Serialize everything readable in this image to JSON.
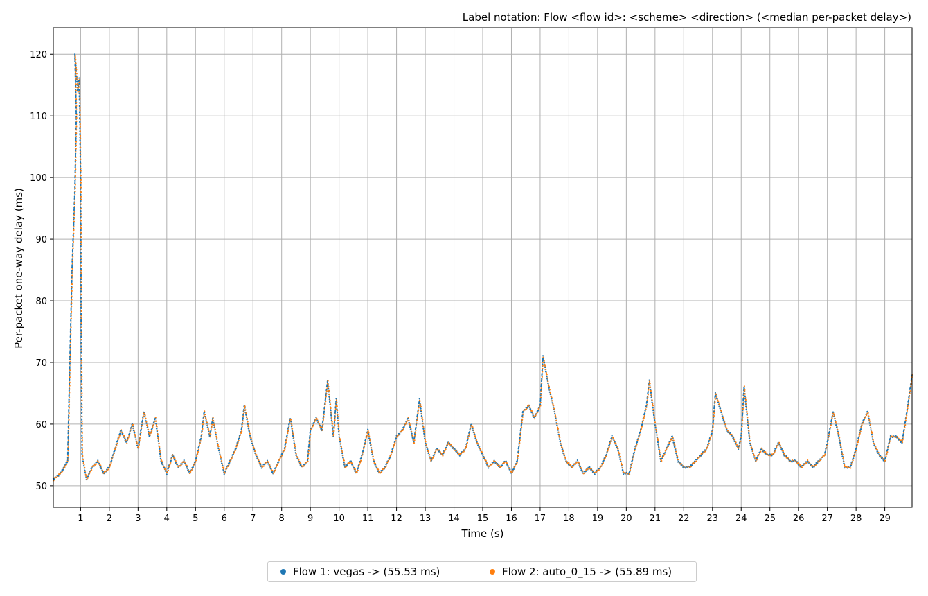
{
  "chart_data": {
    "type": "scatter",
    "title": "Label notation: Flow <flow id>: <scheme> <direction> (<median per-packet delay>)",
    "xlabel": "Time (s)",
    "ylabel": "Per-packet one-way delay (ms)",
    "xlim": [
      0.05,
      29.95
    ],
    "ylim": [
      46.5,
      124.3
    ],
    "xticks": [
      "1",
      "2",
      "3",
      "4",
      "5",
      "6",
      "7",
      "8",
      "9",
      "10",
      "11",
      "12",
      "13",
      "14",
      "15",
      "16",
      "17",
      "18",
      "19",
      "20",
      "21",
      "22",
      "23",
      "24",
      "25",
      "26",
      "27",
      "28",
      "29"
    ],
    "yticks": [
      "50",
      "60",
      "70",
      "80",
      "90",
      "100",
      "110",
      "120"
    ],
    "grid": true,
    "legend_position": "bottom-center",
    "shared_series_points": [
      [
        0.05,
        51
      ],
      [
        0.3,
        52
      ],
      [
        0.55,
        54
      ],
      [
        0.6,
        65
      ],
      [
        0.7,
        85
      ],
      [
        0.8,
        98
      ],
      [
        0.85,
        110
      ],
      [
        0.8,
        120
      ],
      [
        0.9,
        114
      ],
      [
        0.95,
        116
      ],
      [
        1.0,
        100
      ],
      [
        1.02,
        75
      ],
      [
        1.05,
        55
      ],
      [
        1.2,
        51
      ],
      [
        1.4,
        53
      ],
      [
        1.6,
        54
      ],
      [
        1.8,
        52
      ],
      [
        2.0,
        53
      ],
      [
        2.2,
        56
      ],
      [
        2.4,
        59
      ],
      [
        2.6,
        57
      ],
      [
        2.8,
        60
      ],
      [
        3.0,
        56
      ],
      [
        3.2,
        62
      ],
      [
        3.4,
        58
      ],
      [
        3.6,
        61
      ],
      [
        3.8,
        54
      ],
      [
        4.0,
        52
      ],
      [
        4.2,
        55
      ],
      [
        4.4,
        53
      ],
      [
        4.6,
        54
      ],
      [
        4.8,
        52
      ],
      [
        5.0,
        54
      ],
      [
        5.2,
        58
      ],
      [
        5.3,
        62
      ],
      [
        5.5,
        58
      ],
      [
        5.6,
        61
      ],
      [
        5.8,
        56
      ],
      [
        6.0,
        52
      ],
      [
        6.2,
        54
      ],
      [
        6.4,
        56
      ],
      [
        6.6,
        59
      ],
      [
        6.7,
        63
      ],
      [
        6.9,
        58
      ],
      [
        7.1,
        55
      ],
      [
        7.3,
        53
      ],
      [
        7.5,
        54
      ],
      [
        7.7,
        52
      ],
      [
        7.9,
        54
      ],
      [
        8.1,
        56
      ],
      [
        8.3,
        61
      ],
      [
        8.5,
        55
      ],
      [
        8.7,
        53
      ],
      [
        8.9,
        54
      ],
      [
        9.0,
        59
      ],
      [
        9.2,
        61
      ],
      [
        9.4,
        59
      ],
      [
        9.6,
        67
      ],
      [
        9.8,
        58
      ],
      [
        9.9,
        64
      ],
      [
        10.0,
        58
      ],
      [
        10.2,
        53
      ],
      [
        10.4,
        54
      ],
      [
        10.6,
        52
      ],
      [
        10.8,
        55
      ],
      [
        11.0,
        59
      ],
      [
        11.2,
        54
      ],
      [
        11.4,
        52
      ],
      [
        11.6,
        53
      ],
      [
        11.8,
        55
      ],
      [
        12.0,
        58
      ],
      [
        12.2,
        59
      ],
      [
        12.4,
        61
      ],
      [
        12.6,
        57
      ],
      [
        12.8,
        64
      ],
      [
        13.0,
        57
      ],
      [
        13.2,
        54
      ],
      [
        13.4,
        56
      ],
      [
        13.6,
        55
      ],
      [
        13.8,
        57
      ],
      [
        14.0,
        56
      ],
      [
        14.2,
        55
      ],
      [
        14.4,
        56
      ],
      [
        14.6,
        60
      ],
      [
        14.8,
        57
      ],
      [
        15.0,
        55
      ],
      [
        15.2,
        53
      ],
      [
        15.4,
        54
      ],
      [
        15.6,
        53
      ],
      [
        15.8,
        54
      ],
      [
        16.0,
        52
      ],
      [
        16.2,
        54
      ],
      [
        16.4,
        62
      ],
      [
        16.6,
        63
      ],
      [
        16.8,
        61
      ],
      [
        17.0,
        63
      ],
      [
        17.1,
        71
      ],
      [
        17.3,
        66
      ],
      [
        17.5,
        62
      ],
      [
        17.7,
        57
      ],
      [
        17.9,
        54
      ],
      [
        18.1,
        53
      ],
      [
        18.3,
        54
      ],
      [
        18.5,
        52
      ],
      [
        18.7,
        53
      ],
      [
        18.9,
        52
      ],
      [
        19.1,
        53
      ],
      [
        19.3,
        55
      ],
      [
        19.5,
        58
      ],
      [
        19.7,
        56
      ],
      [
        19.9,
        52
      ],
      [
        20.1,
        52
      ],
      [
        20.3,
        56
      ],
      [
        20.5,
        59
      ],
      [
        20.7,
        63
      ],
      [
        20.8,
        67
      ],
      [
        21.0,
        60
      ],
      [
        21.2,
        54
      ],
      [
        21.4,
        56
      ],
      [
        21.6,
        58
      ],
      [
        21.8,
        54
      ],
      [
        22.0,
        53
      ],
      [
        22.2,
        53
      ],
      [
        22.4,
        54
      ],
      [
        22.6,
        55
      ],
      [
        22.8,
        56
      ],
      [
        23.0,
        59
      ],
      [
        23.1,
        65
      ],
      [
        23.3,
        62
      ],
      [
        23.5,
        59
      ],
      [
        23.7,
        58
      ],
      [
        23.9,
        56
      ],
      [
        24.0,
        58
      ],
      [
        24.1,
        66
      ],
      [
        24.3,
        57
      ],
      [
        24.5,
        54
      ],
      [
        24.7,
        56
      ],
      [
        24.9,
        55
      ],
      [
        25.1,
        55
      ],
      [
        25.3,
        57
      ],
      [
        25.5,
        55
      ],
      [
        25.7,
        54
      ],
      [
        25.9,
        54
      ],
      [
        26.1,
        53
      ],
      [
        26.3,
        54
      ],
      [
        26.5,
        53
      ],
      [
        26.7,
        54
      ],
      [
        26.9,
        55
      ],
      [
        27.0,
        57
      ],
      [
        27.2,
        62
      ],
      [
        27.4,
        58
      ],
      [
        27.6,
        53
      ],
      [
        27.8,
        53
      ],
      [
        28.0,
        56
      ],
      [
        28.2,
        60
      ],
      [
        28.4,
        62
      ],
      [
        28.6,
        57
      ],
      [
        28.8,
        55
      ],
      [
        29.0,
        54
      ],
      [
        29.2,
        58
      ],
      [
        29.4,
        58
      ],
      [
        29.6,
        57
      ],
      [
        29.8,
        63
      ],
      [
        29.95,
        68
      ]
    ],
    "series": [
      {
        "name": "Flow 1: vegas -> (55.53 ms)",
        "color": "#1f77b4"
      },
      {
        "name": "Flow 2: auto_0_15 -> (55.89 ms)",
        "color": "#ff7f0e"
      }
    ]
  }
}
